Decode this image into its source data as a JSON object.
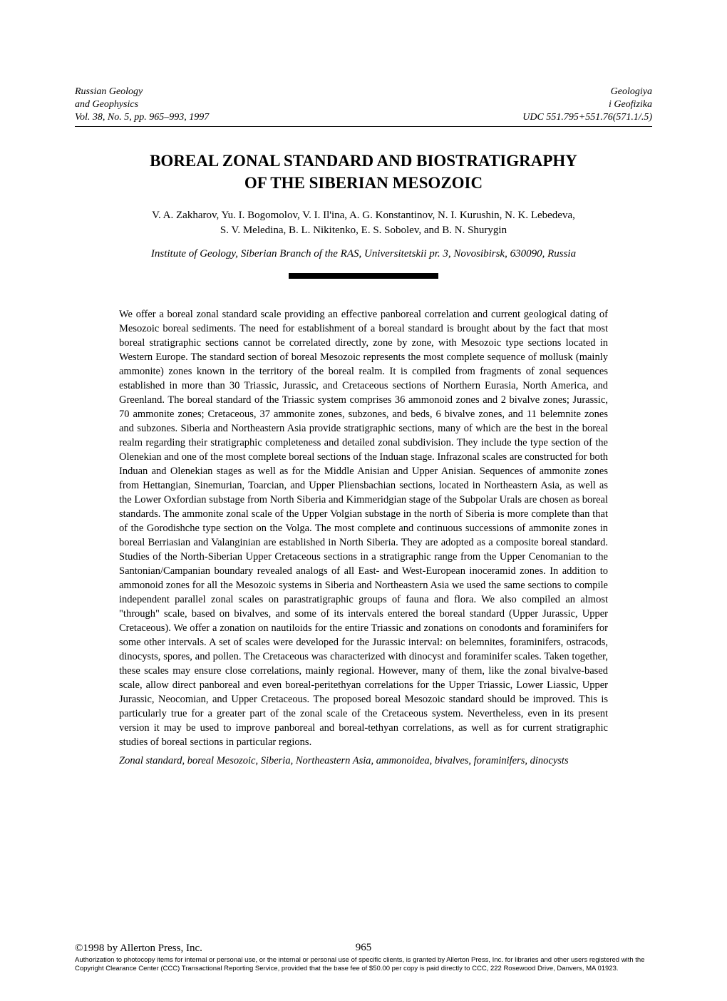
{
  "header": {
    "left_line1": "Russian Geology",
    "left_line2": "and Geophysics",
    "left_line3": "Vol. 38, No. 5, pp. 965–993, 1997",
    "right_line1": "Geologiya",
    "right_line2": "i Geofizika",
    "right_line3": "UDC 551.795+551.76(571.1/.5)"
  },
  "title": {
    "line1": "BOREAL ZONAL STANDARD AND BIOSTRATIGRAPHY",
    "line2": "OF THE SIBERIAN MESOZOIC"
  },
  "authors": {
    "line1": "V. A. Zakharov, Yu. I. Bogomolov, V. I. Il'ina, A. G. Konstantinov, N. I. Kurushin, N. K. Lebedeva,",
    "line2": "S. V. Meledina, B. L. Nikitenko, E. S. Sobolev, and B. N. Shurygin"
  },
  "affiliation": "Institute of Geology, Siberian Branch of the RAS, Universitetskii pr. 3, Novosibirsk, 630090, Russia",
  "abstract": "We offer a boreal zonal standard scale providing an effective panboreal correlation and current geological dating of Mesozoic boreal sediments. The need for establishment of a boreal standard is brought about by the fact that most boreal stratigraphic sections cannot be correlated directly, zone by zone, with Mesozoic type sections located in Western Europe. The standard section of boreal Mesozoic represents the most complete sequence of mollusk (mainly ammonite) zones known in the territory of the boreal realm. It is compiled from fragments of zonal sequences established in more than 30 Triassic, Jurassic, and Cretaceous sections of Northern Eurasia, North America, and Greenland. The boreal standard of the Triassic system comprises 36 ammonoid zones and 2 bivalve zones; Jurassic, 70 ammonite zones; Cretaceous, 37 ammonite zones, subzones, and beds, 6 bivalve zones, and 11 belemnite zones and subzones. Siberia and Northeastern Asia provide stratigraphic sections, many of which are the best in the boreal realm regarding their stratigraphic completeness and detailed zonal subdivision. They include the type section of the Olenekian and one of the most complete boreal sections of the Induan stage. Infrazonal scales are constructed for both Induan and Olenekian stages as well as for the Middle Anisian and Upper Anisian. Sequences of ammonite zones from Hettangian, Sinemurian, Toarcian, and Upper Pliensbachian sections, located in Northeastern Asia, as well as the Lower Oxfordian substage from North Siberia and Kimmeridgian stage of the Subpolar Urals are chosen as boreal standards. The ammonite zonal scale of the Upper Volgian substage in the north of Siberia is more complete than that of the Gorodishche type section on the Volga. The most complete and continuous successions of ammonite zones in boreal Berriasian and Valanginian are established in North Siberia. They are adopted as a composite boreal standard. Studies of the North-Siberian Upper Cretaceous sections in a stratigraphic range from the Upper Cenomanian to the Santonian/Campanian boundary revealed analogs of all East- and West-European inoceramid zones. In addition to ammonoid zones for all the Mesozoic systems in Siberia and Northeastern Asia we used the same sections to compile independent parallel zonal scales on parastratigraphic groups of fauna and flora. We also compiled an almost \"through\" scale, based on bivalves, and some of its intervals entered the boreal standard (Upper Jurassic, Upper Cretaceous). We offer a zonation on nautiloids for the entire Triassic and zonations on conodonts and foraminifers for some other intervals. A set of scales were developed for the Jurassic interval: on belemnites, foraminifers, ostracods, dinocysts, spores, and pollen. The Cretaceous was characterized with dinocyst and foraminifer scales. Taken together, these scales may ensure close correlations, mainly regional. However, many of them, like the zonal bivalve-based scale, allow direct panboreal and even boreal-peritethyan correlations for the Upper Triassic, Lower Liassic, Upper Jurassic, Neocomian, and Upper Cretaceous. The proposed boreal Mesozoic standard should be improved. This is particularly true for a greater part of the zonal scale of the Cretaceous system. Nevertheless, even in its present version it may be used to improve panboreal and boreal-tethyan correlations, as well as for current stratigraphic studies of boreal sections in particular regions.",
  "keywords": "Zonal standard, boreal Mesozoic, Siberia, Northeastern Asia, ammonoidea, bivalves, foraminifers, dinocysts",
  "footer": {
    "copyright": "©1998 by Allerton Press, Inc.",
    "page_number": "965",
    "disclaimer": "Authorization to photocopy items for internal or personal use, or the internal or personal use of specific clients, is granted by Allerton Press, Inc. for libraries and other users registered with the Copyright Clearance Center (CCC) Transactional Reporting Service, provided that the base fee of $50.00 per copy is paid directly to CCC, 222 Rosewood Drive, Danvers, MA 01923."
  }
}
